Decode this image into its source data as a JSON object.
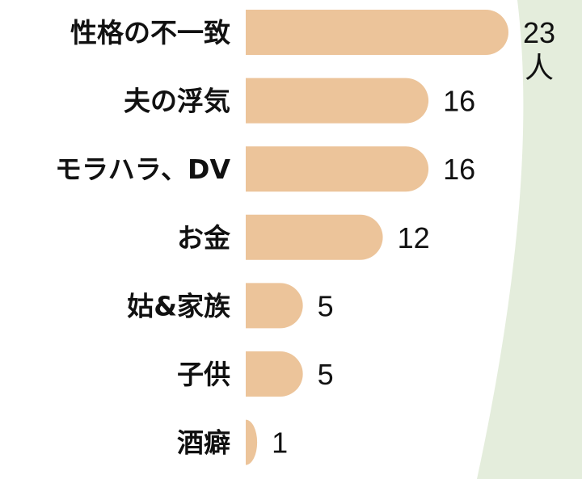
{
  "chart_data": {
    "type": "bar",
    "orientation": "horizontal",
    "categories": [
      "性格の不一致",
      "夫の浮気",
      "モラハラ、DV",
      "お金",
      "姑&家族",
      "子供",
      "酒癖"
    ],
    "values": [
      23,
      16,
      16,
      12,
      5,
      5,
      1
    ],
    "unit": "人",
    "title": "",
    "xlabel": "",
    "ylabel": "",
    "xlim": [
      0,
      23
    ],
    "grid": false,
    "legend": "none",
    "colors": {
      "bar": "#ecc49a",
      "background_accent": "#e4eddc",
      "text": "#111111"
    }
  }
}
